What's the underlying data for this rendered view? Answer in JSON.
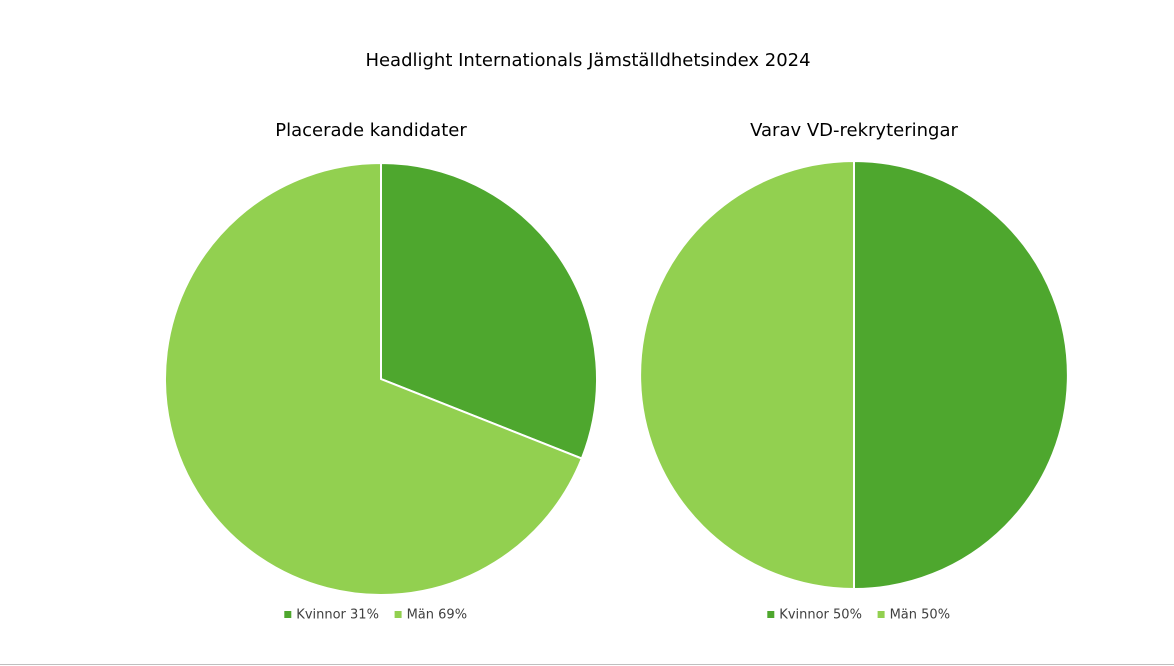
{
  "title": "Headlight Internationals Jämställdhetsindex 2024",
  "chart_data": [
    {
      "type": "pie",
      "title": "Placerade kandidater",
      "categories": [
        "Kvinnor 31%",
        "Män 69%"
      ],
      "values": [
        31,
        69
      ],
      "colors": [
        "#4ea72e",
        "#92d050"
      ],
      "legend": "bottom"
    },
    {
      "type": "pie",
      "title": "Varav VD-rekryteringar",
      "categories": [
        "Kvinnor 50%",
        "Män 50%"
      ],
      "values": [
        50,
        50
      ],
      "colors": [
        "#4ea72e",
        "#92d050"
      ],
      "legend": "bottom"
    }
  ]
}
